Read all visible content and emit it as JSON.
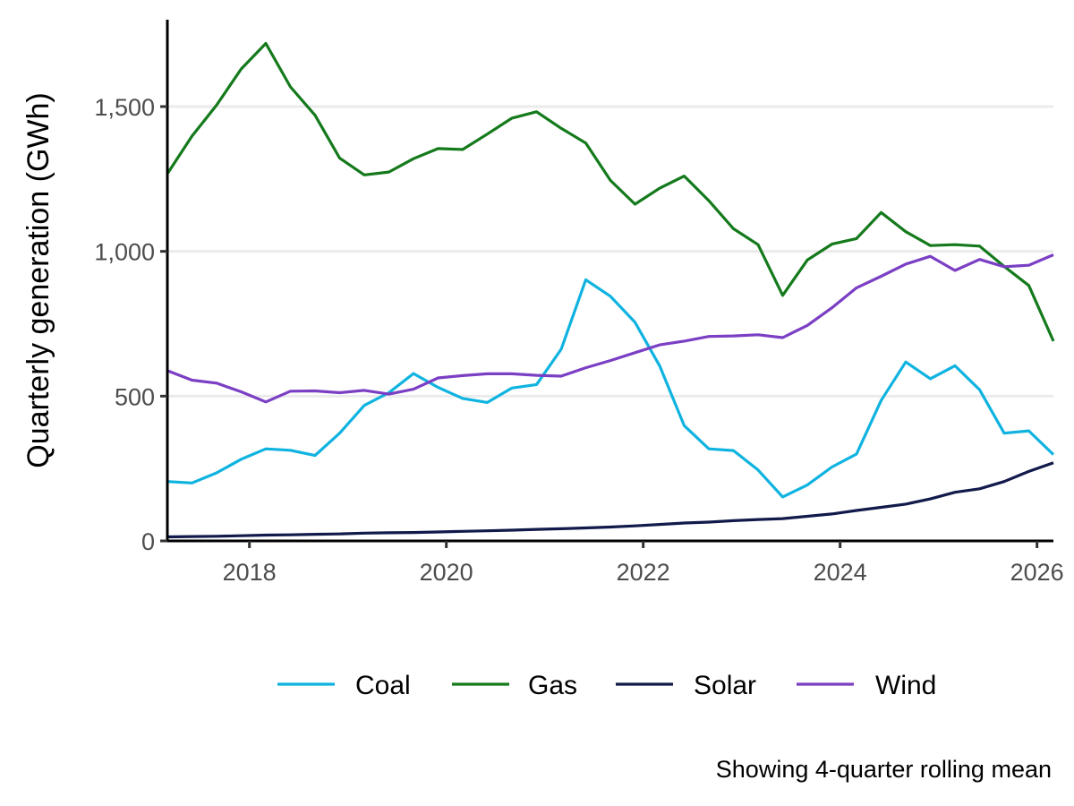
{
  "chart_data": {
    "type": "line",
    "title": "",
    "xlabel": "",
    "ylabel": "Quarterly generation (GWh)",
    "caption": "Showing 4-quarter rolling mean",
    "xlim": [
      "2017-03",
      "2026-03"
    ],
    "ylim": [
      0,
      1800
    ],
    "x_ticks": [
      "2018",
      "2020",
      "2022",
      "2024",
      "2026"
    ],
    "y_ticks": [
      0,
      500,
      1000,
      1500
    ],
    "y_tick_labels": [
      "0",
      "500",
      "1,000",
      "1,500"
    ],
    "grid": "horizontal major",
    "legend_position": "bottom",
    "x": [
      "2017-03",
      "2017-06",
      "2017-09",
      "2017-12",
      "2018-03",
      "2018-06",
      "2018-09",
      "2018-12",
      "2019-03",
      "2019-06",
      "2019-09",
      "2019-12",
      "2020-03",
      "2020-06",
      "2020-09",
      "2020-12",
      "2021-03",
      "2021-06",
      "2021-09",
      "2021-12",
      "2022-03",
      "2022-06",
      "2022-09",
      "2022-12",
      "2023-03",
      "2023-06",
      "2023-09",
      "2023-12",
      "2024-03",
      "2024-06",
      "2024-09",
      "2024-12",
      "2025-03",
      "2025-06",
      "2025-09",
      "2025-12",
      "2026-03"
    ],
    "series": [
      {
        "name": "Coal",
        "color": "#0fb3e0",
        "values": [
          205,
          200,
          235,
          282,
          318,
          313,
          295,
          372,
          468,
          512,
          578,
          530,
          492,
          478,
          528,
          540,
          662,
          902,
          845,
          755,
          605,
          398,
          318,
          312,
          245,
          152,
          193,
          255,
          300,
          485,
          618,
          560,
          605,
          522,
          372,
          380,
          298
        ]
      },
      {
        "name": "Gas",
        "color": "#147a1c",
        "values": [
          1268,
          1398,
          1505,
          1630,
          1718,
          1568,
          1470,
          1322,
          1264,
          1274,
          1320,
          1355,
          1352,
          1405,
          1460,
          1482,
          1425,
          1374,
          1245,
          1163,
          1218,
          1260,
          1175,
          1078,
          1023,
          848,
          970,
          1025,
          1044,
          1134,
          1068,
          1020,
          1023,
          1018,
          948,
          882,
          690
        ]
      },
      {
        "name": "Solar",
        "color": "#111a4a",
        "values": [
          14,
          15,
          16,
          18,
          20,
          21,
          23,
          24,
          27,
          28,
          29,
          31,
          33,
          35,
          37,
          40,
          42,
          45,
          48,
          52,
          57,
          62,
          65,
          70,
          74,
          77,
          85,
          93,
          105,
          116,
          127,
          145,
          168,
          180,
          205,
          240,
          270
        ]
      },
      {
        "name": "Wind",
        "color": "#7b3fc4",
        "values": [
          588,
          555,
          545,
          515,
          480,
          517,
          518,
          512,
          520,
          507,
          524,
          563,
          571,
          577,
          577,
          572,
          569,
          598,
          623,
          650,
          677,
          690,
          706,
          708,
          712,
          702,
          744,
          805,
          874,
          914,
          956,
          983,
          934,
          972,
          947,
          952,
          988
        ]
      }
    ]
  }
}
